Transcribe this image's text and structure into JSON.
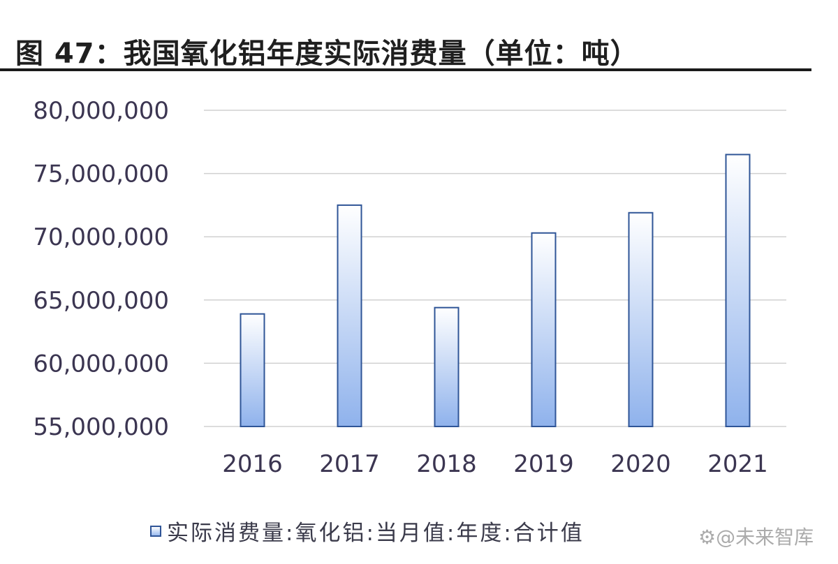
{
  "chart_data": {
    "type": "bar",
    "title": "图 47：我国氧化铝年度实际消费量（单位：吨）",
    "categories": [
      "2016",
      "2017",
      "2018",
      "2019",
      "2020",
      "2021"
    ],
    "series": [
      {
        "name": "实际消费量:氧化铝:当月值:年度:合计值",
        "values": [
          63900000,
          72500000,
          64400000,
          70300000,
          71900000,
          76500000
        ]
      }
    ],
    "ylim": [
      55000000,
      80000000
    ],
    "yticks": [
      {
        "value": 80000000,
        "label": "80,000,000"
      },
      {
        "value": 75000000,
        "label": "75,000,000"
      },
      {
        "value": 70000000,
        "label": "70,000,000"
      },
      {
        "value": 65000000,
        "label": "65,000,000"
      },
      {
        "value": 60000000,
        "label": "60,000,000"
      },
      {
        "value": 55000000,
        "label": "55,000,000"
      }
    ],
    "grid": true,
    "legend_position": "bottom-left",
    "colors": {
      "bar_border": "#2f5597",
      "bar_top": "#ffffff",
      "bar_bottom": "#8fb2ec",
      "grid": "#d0d0d0",
      "tick_text": "#3b3551"
    }
  },
  "watermark": "@未来智库",
  "watermark_icon": "gear-icon"
}
